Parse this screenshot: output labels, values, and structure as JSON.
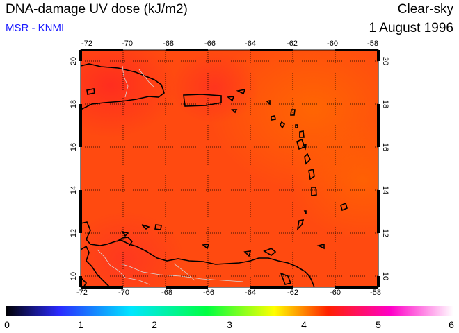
{
  "header": {
    "title": "DNA-damage UV dose (kJ/m2)",
    "subtitle": "MSR - KNMI",
    "mode": "Clear-sky",
    "date": "1 August 1996"
  },
  "map": {
    "lon_ticks": [
      "-72",
      "-70",
      "-68",
      "-66",
      "-64",
      "-62",
      "-60",
      "-58"
    ],
    "lat_ticks": [
      "20",
      "18",
      "16",
      "14",
      "12",
      "10"
    ],
    "lon_range": [
      -72,
      -58
    ],
    "lat_range": [
      9.5,
      20.5
    ],
    "fill_color": "#ff4a10",
    "field_description_colors": {
      "low": "#ff3c1e",
      "mid": "#ff4a10",
      "high": "#ff6400"
    },
    "gridlines": "dotted"
  },
  "colorbar": {
    "labels": [
      "0",
      "1",
      "2",
      "3",
      "4",
      "5",
      "6"
    ],
    "range": [
      0,
      6
    ],
    "stops": [
      "#000000",
      "#2020ff",
      "#00e0ff",
      "#00ff40",
      "#ffff00",
      "#ff2000",
      "#ff00c0",
      "#ffffff"
    ]
  }
}
